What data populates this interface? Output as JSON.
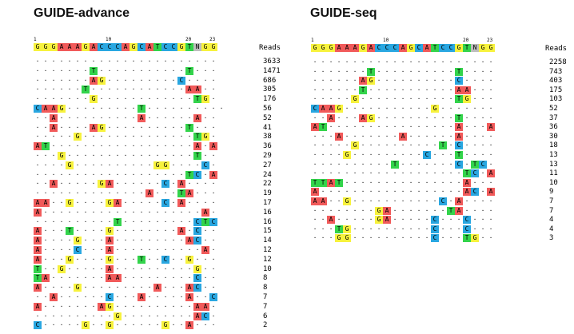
{
  "colors": {
    "A": "#f15a5a",
    "C": "#29a7e1",
    "G": "#f7f23d",
    "T": "#33d44b",
    "N": "#bdbdbd"
  },
  "panels": [
    {
      "title": "GUIDE-advance",
      "position_labels": [
        "1",
        "10",
        "20",
        "23"
      ],
      "reference": "GGGAAAGACCCAGCATCCGTNGG",
      "reads_label": "Reads",
      "rows": [
        {
          "seq": "......................."
        },
        {
          "seq": ".......T...........T..."
        },
        {
          "seq": ".......AG.........C...."
        },
        {
          "seq": "......T............AA.."
        },
        {
          "seq": ".......G............TG."
        },
        {
          "seq": "CAAG.........T.........."
        },
        {
          "seq": "..A..........A......A.."
        },
        {
          "seq": "..A....AG..........T..."
        },
        {
          "seq": ".....G..............TG."
        },
        {
          "seq": "AT..................A.A"
        },
        {
          "seq": "...G................T.."
        },
        {
          "seq": "....G..........GG....C."
        },
        {
          "seq": "...................TC.A"
        },
        {
          "seq": "..A.....GA......C.A...."
        },
        {
          "seq": "..............A...TA..."
        },
        {
          "seq": "AA..G....GA.....C.A...."
        },
        {
          "seq": "A....................A."
        },
        {
          "seq": "..........T.........CTC"
        },
        {
          "seq": "A...T....G........A.C.."
        },
        {
          "seq": "A....G...A.........AC.."
        },
        {
          "seq": "A....C...A...........A."
        },
        {
          "seq": "A...G....G...T..C..G..."
        },
        {
          "seq": "T..G.....A..........G.."
        },
        {
          "seq": "TA.......AA.........C.."
        },
        {
          "seq": "A....G.........A...AC.."
        },
        {
          "seq": "..A......C...A.....A..C"
        },
        {
          "seq": "A.......AG..........AA."
        },
        {
          "seq": "..........G.........AC."
        },
        {
          "seq": "C.....G..G......G..A..."
        }
      ],
      "reads": [
        "3633",
        "1471",
        "686",
        "305",
        "176",
        "56",
        "52",
        "41",
        "38",
        "36",
        "29",
        "27",
        "24",
        "22",
        "19",
        "17",
        "16",
        "16",
        "15",
        "14",
        "12",
        "12",
        "10",
        "8",
        "8",
        "7",
        "7",
        "6",
        "2"
      ]
    },
    {
      "title": "GUIDE-seq",
      "position_labels": [
        "1",
        "10",
        "20",
        "23"
      ],
      "reference": "GGGAAAGACCCAGCATCCGTNGG",
      "reads_label": "Reads",
      "rows": [
        {
          "seq": "......................."
        },
        {
          "seq": ".......T..........T...."
        },
        {
          "seq": "......AG..........C...."
        },
        {
          "seq": "......T...........AA..."
        },
        {
          "seq": ".....G............TG..."
        },
        {
          "seq": "CAAG...........G......."
        },
        {
          "seq": "..A...AG..........T...."
        },
        {
          "seq": "AT................A...A"
        },
        {
          "seq": "...A.......A......A...."
        },
        {
          "seq": ".....G..........T.C...."
        },
        {
          "seq": "....G.........C...T...."
        },
        {
          "seq": "..........T.......C.TC."
        },
        {
          "seq": "...................TC.A"
        },
        {
          "seq": "TTAT...............A..."
        },
        {
          "seq": "A..................AC.A"
        },
        {
          "seq": "AA..G...........C.A...."
        },
        {
          "seq": "........GA.......TA...."
        },
        {
          "seq": "..A.....GA.....C...C..."
        },
        {
          "seq": "...TG..........C...C..."
        },
        {
          "seq": "...GG..........C...TG.."
        }
      ],
      "reads": [
        "2258",
        "743",
        "403",
        "175",
        "103",
        "52",
        "37",
        "36",
        "30",
        "18",
        "13",
        "13",
        "11",
        "10",
        "9",
        "7",
        "7",
        "4",
        "4",
        "3"
      ]
    }
  ]
}
